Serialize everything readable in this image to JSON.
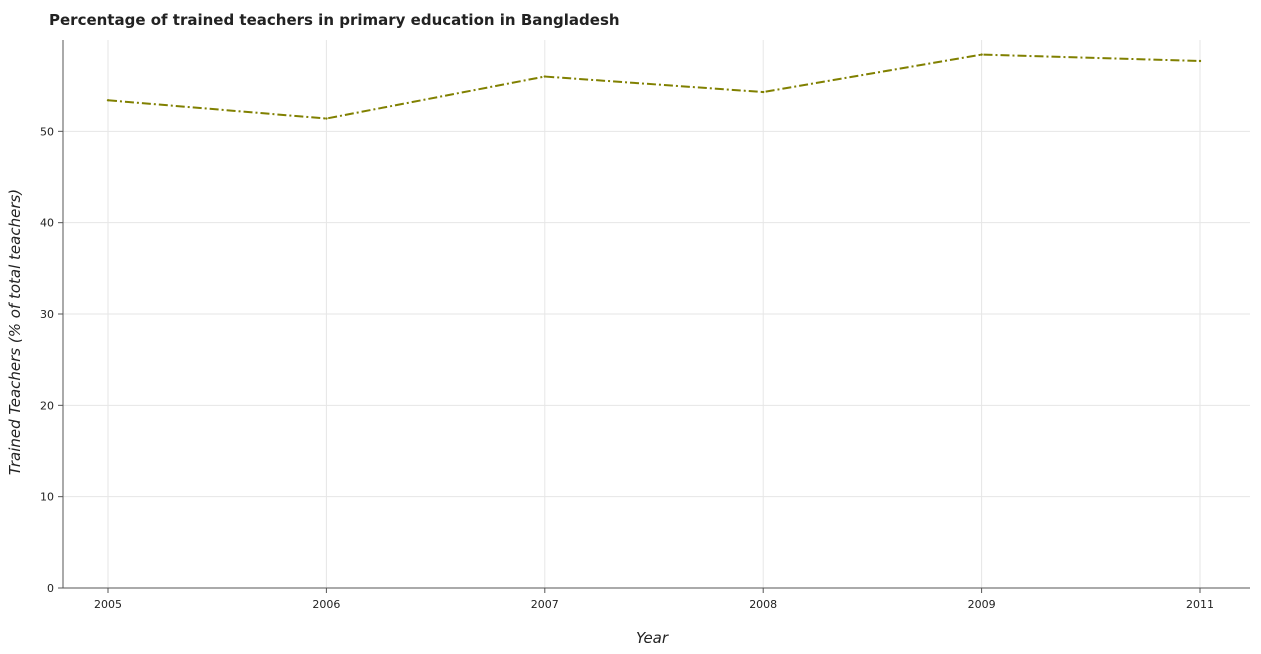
{
  "chart_data": {
    "type": "line",
    "title": "Percentage of trained teachers in primary education in Bangladesh",
    "xlabel": "Year",
    "ylabel": "Trained Teachers (% of total teachers)",
    "categories": [
      "2005",
      "2006",
      "2007",
      "2008",
      "2009",
      "2011"
    ],
    "series": [
      {
        "name": "Trained teachers (% of total teachers)",
        "values": [
          53.4,
          51.4,
          56.0,
          54.3,
          58.4,
          57.7
        ],
        "color": "#808000",
        "style": "dash-dot"
      }
    ],
    "ylim": [
      0,
      60
    ],
    "yticks": [
      0,
      10,
      20,
      30,
      40,
      50
    ],
    "grid": true
  }
}
